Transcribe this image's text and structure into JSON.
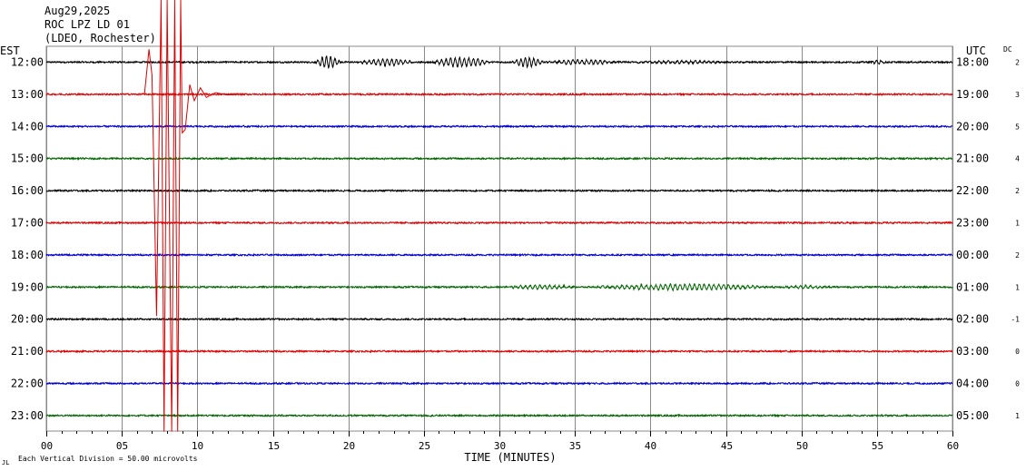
{
  "header": {
    "date": "Aug29,2025",
    "station": "ROC LPZ LD 01",
    "network": "(LDEO, Rochester)"
  },
  "left_zone": "EST",
  "right_zone": "UTC",
  "dc_label": "DC",
  "footer_note": "Each Vertical Division =   50.00 microvolts",
  "footer_mark": "JL",
  "colors": {
    "black": "#000000",
    "red": "#dd0000",
    "blue": "#0000cc",
    "green": "#006600",
    "grid": "#888888"
  },
  "chart_data": {
    "type": "line",
    "title": "ROC LPZ LD 01",
    "xlabel": "TIME (MINUTES)",
    "ylabel": "",
    "xlim": [
      0,
      60
    ],
    "x_ticks": [
      "00",
      "05",
      "10",
      "15",
      "20",
      "25",
      "30",
      "35",
      "40",
      "45",
      "50",
      "55",
      "60"
    ],
    "vertical_division_microvolts": 50.0,
    "rows": [
      {
        "est": "12:00",
        "utc": "18:00",
        "dc": "2",
        "color": "black",
        "events": [
          {
            "start": 17.8,
            "end": 19.5,
            "amp": 0.6,
            "period": 0.28
          },
          {
            "start": 20.5,
            "end": 24.5,
            "amp": 0.32,
            "period": 0.3
          },
          {
            "start": 25.5,
            "end": 29.5,
            "amp": 0.45,
            "period": 0.3
          },
          {
            "start": 30.8,
            "end": 33.0,
            "amp": 0.45,
            "period": 0.28
          },
          {
            "start": 33.0,
            "end": 38.0,
            "amp": 0.22,
            "period": 0.3
          },
          {
            "start": 38.5,
            "end": 45.5,
            "amp": 0.12,
            "period": 0.3
          },
          {
            "start": 54.6,
            "end": 55.6,
            "amp": 0.2,
            "period": 0.3
          }
        ]
      },
      {
        "est": "13:00",
        "utc": "19:00",
        "dc": "3",
        "color": "red",
        "events": []
      },
      {
        "est": "14:00",
        "utc": "20:00",
        "dc": "5",
        "color": "blue",
        "events": []
      },
      {
        "est": "15:00",
        "utc": "21:00",
        "dc": "4",
        "color": "green",
        "events": []
      },
      {
        "est": "16:00",
        "utc": "22:00",
        "dc": "2",
        "color": "black",
        "events": []
      },
      {
        "est": "17:00",
        "utc": "23:00",
        "dc": "1",
        "color": "red",
        "events": []
      },
      {
        "est": "18:00",
        "utc": "00:00",
        "dc": "2",
        "color": "blue",
        "events": []
      },
      {
        "est": "19:00",
        "utc": "01:00",
        "dc": "1",
        "color": "green",
        "events": [
          {
            "start": 30.0,
            "end": 35.5,
            "amp": 0.18,
            "period": 0.32
          },
          {
            "start": 36.0,
            "end": 48.5,
            "amp": 0.28,
            "period": 0.32
          },
          {
            "start": 48.5,
            "end": 52.0,
            "amp": 0.12,
            "period": 0.32
          }
        ]
      },
      {
        "est": "20:00",
        "utc": "02:00",
        "dc": "-1",
        "color": "black",
        "events": []
      },
      {
        "est": "21:00",
        "utc": "03:00",
        "dc": "0",
        "color": "red",
        "events": []
      },
      {
        "est": "22:00",
        "utc": "04:00",
        "dc": "0",
        "color": "blue",
        "events": []
      },
      {
        "est": "23:00",
        "utc": "05:00",
        "dc": "1",
        "color": "green",
        "events": []
      }
    ],
    "earthquake": {
      "row": "13:00",
      "color": "red",
      "minutes": [
        6.5,
        6.8,
        7.0,
        7.1,
        7.3,
        7.6,
        7.8,
        8.0,
        8.3,
        8.5,
        8.7,
        8.9,
        9.0,
        9.2,
        9.5,
        9.8,
        10.2,
        10.6,
        11.2,
        12.0,
        13.0
      ],
      "offsets_rows": [
        0.0,
        -1.4,
        -0.6,
        1.9,
        6.9,
        -3.0,
        10.5,
        -3.0,
        10.5,
        -3.0,
        10.5,
        -3.0,
        1.2,
        1.1,
        -0.3,
        0.2,
        -0.2,
        0.1,
        -0.05,
        0.02,
        0.0
      ],
      "clip_top_rows": -3.0,
      "clip_bottom_rows": 10.5
    }
  }
}
